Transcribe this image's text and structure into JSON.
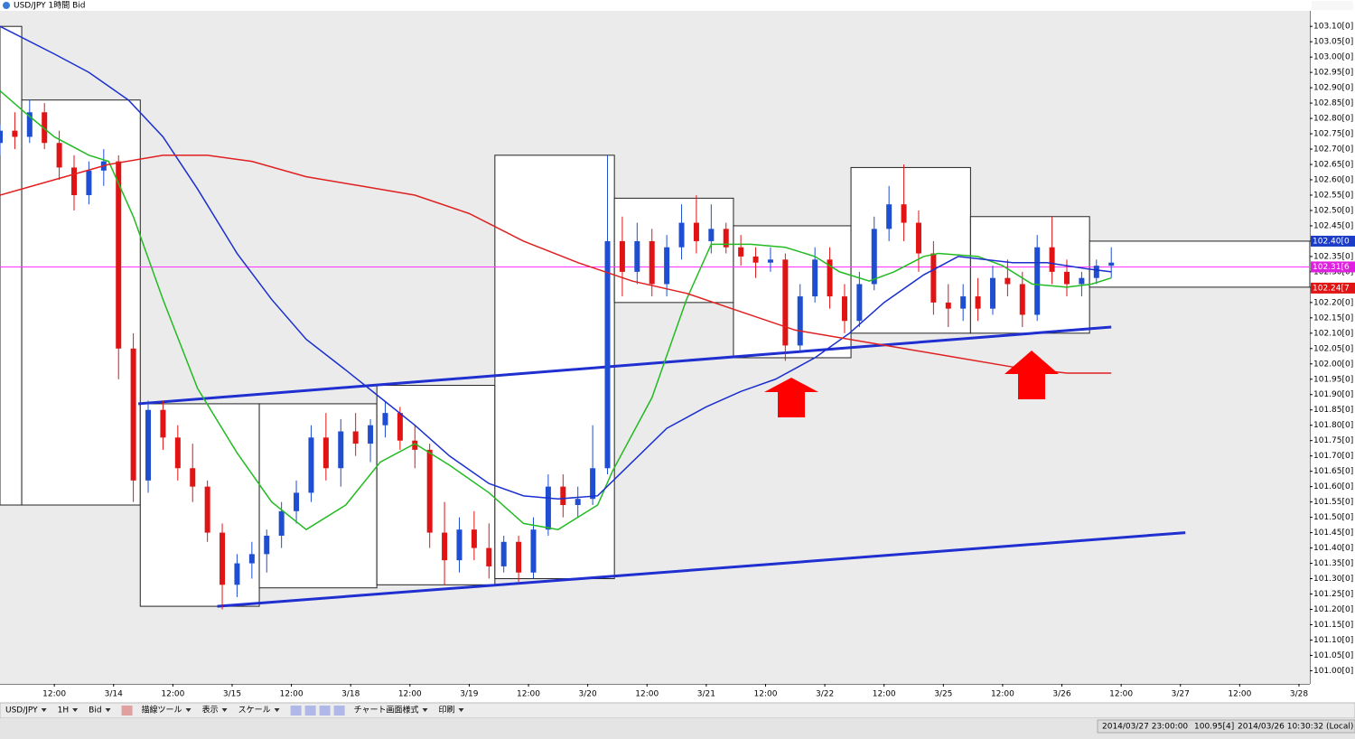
{
  "window_title": "USD/JPY 1時間 Bid",
  "toolbar": [
    "USD/JPY",
    "1H",
    "Bid",
    "描線ツール",
    "表示",
    "スケール",
    "チャート画面様式",
    "印刷"
  ],
  "status": [
    "2014/03/27 23:00:00",
    "100.95[4]",
    "2014/03/26 10:30:32 (Local)"
  ],
  "chart_data": {
    "type": "candlestick",
    "xlim": [
      0,
      265.2
    ],
    "ylim": [
      100.96,
      103.13
    ],
    "xticks": [
      {
        "value": 11,
        "label": "12:00"
      },
      {
        "value": 23,
        "label": "3/14"
      },
      {
        "value": 35,
        "label": "12:00"
      },
      {
        "value": 47,
        "label": "3/15"
      },
      {
        "value": 59,
        "label": "12:00"
      },
      {
        "value": 71,
        "label": "3/18"
      },
      {
        "value": 83,
        "label": "12:00"
      },
      {
        "value": 95,
        "label": "3/19"
      },
      {
        "value": 107,
        "label": "12:00"
      },
      {
        "value": 119,
        "label": "3/20"
      },
      {
        "value": 131,
        "label": "12:00"
      },
      {
        "value": 143,
        "label": "3/21"
      },
      {
        "value": 155,
        "label": "12:00"
      },
      {
        "value": 167,
        "label": "3/22"
      },
      {
        "value": 179,
        "label": "12:00"
      },
      {
        "value": 191,
        "label": "3/25"
      },
      {
        "value": 203,
        "label": "12:00"
      },
      {
        "value": 215,
        "label": "3/26"
      },
      {
        "value": 227,
        "label": "12:00"
      },
      {
        "value": 239,
        "label": "3/27"
      },
      {
        "value": 251,
        "label": "12:00"
      },
      {
        "value": 263,
        "label": "3/28"
      }
    ],
    "yticks": [
      {
        "value": 101.0,
        "label": "101.00[0]"
      },
      {
        "value": 101.05,
        "label": "101.05[0]"
      },
      {
        "value": 101.1,
        "label": "101.10[0]"
      },
      {
        "value": 101.15,
        "label": "101.15[0]"
      },
      {
        "value": 101.2,
        "label": "101.20[0]"
      },
      {
        "value": 101.25,
        "label": "101.25[0]"
      },
      {
        "value": 101.3,
        "label": "101.30[0]"
      },
      {
        "value": 101.35,
        "label": "101.35[0]"
      },
      {
        "value": 101.4,
        "label": "101.40[0]"
      },
      {
        "value": 101.45,
        "label": "101.45[0]"
      },
      {
        "value": 101.5,
        "label": "101.50[0]"
      },
      {
        "value": 101.55,
        "label": "101.55[0]"
      },
      {
        "value": 101.6,
        "label": "101.60[0]"
      },
      {
        "value": 101.65,
        "label": "101.65[0]"
      },
      {
        "value": 101.7,
        "label": "101.70[0]"
      },
      {
        "value": 101.75,
        "label": "101.75[0]"
      },
      {
        "value": 101.8,
        "label": "101.80[0]"
      },
      {
        "value": 101.85,
        "label": "101.85[0]"
      },
      {
        "value": 101.9,
        "label": "101.90[0]"
      },
      {
        "value": 101.95,
        "label": "101.95[0]"
      },
      {
        "value": 102.0,
        "label": "102.00[0]"
      },
      {
        "value": 102.05,
        "label": "102.05[0]"
      },
      {
        "value": 102.1,
        "label": "102.10[0]"
      },
      {
        "value": 102.15,
        "label": "102.15[0]"
      },
      {
        "value": 102.2,
        "label": "102.20[0]"
      },
      {
        "value": 102.25,
        "label": "102.25[0]"
      },
      {
        "value": 102.3,
        "label": "102.30[0]"
      },
      {
        "value": 102.35,
        "label": "102.35[0]"
      },
      {
        "value": 102.4,
        "label": "102.40[0]"
      },
      {
        "value": 102.45,
        "label": "102.45[0]"
      },
      {
        "value": 102.5,
        "label": "102.50[0]"
      },
      {
        "value": 102.55,
        "label": "102.55[0]"
      },
      {
        "value": 102.6,
        "label": "102.60[0]"
      },
      {
        "value": 102.65,
        "label": "102.65[0]"
      },
      {
        "value": 102.7,
        "label": "102.70[0]"
      },
      {
        "value": 102.75,
        "label": "102.75[0]"
      },
      {
        "value": 102.8,
        "label": "102.80[0]"
      },
      {
        "value": 102.85,
        "label": "102.85[0]"
      },
      {
        "value": 102.9,
        "label": "102.90[0]"
      },
      {
        "value": 102.95,
        "label": "102.95[0]"
      },
      {
        "value": 103.0,
        "label": "103.00[0]"
      },
      {
        "value": 103.05,
        "label": "103.05[0]"
      },
      {
        "value": 103.1,
        "label": "103.10[0]"
      }
    ],
    "up_color": "#1f4fd0",
    "down_color": "#e01414",
    "candles": {
      "x": [
        0,
        3,
        6,
        9,
        12,
        15,
        18,
        21,
        24,
        27,
        30,
        33,
        36,
        39,
        42,
        45,
        48,
        51,
        54,
        57,
        60,
        63,
        66,
        69,
        72,
        75,
        78,
        81,
        84,
        87,
        90,
        93,
        96,
        99,
        102,
        105,
        108,
        111,
        114,
        117,
        120,
        123,
        126,
        129,
        132,
        135,
        138,
        141,
        144,
        147,
        150,
        153,
        156,
        159,
        162,
        165,
        168,
        171,
        174,
        177,
        180,
        183,
        186,
        189,
        192,
        195,
        198,
        201,
        204,
        207,
        210,
        213,
        216,
        219,
        222,
        225
      ],
      "open": [
        102.72,
        102.76,
        102.74,
        102.82,
        102.72,
        102.64,
        102.55,
        102.63,
        102.66,
        102.05,
        101.62,
        101.85,
        101.76,
        101.66,
        101.6,
        101.45,
        101.28,
        101.35,
        101.38,
        101.44,
        101.52,
        101.58,
        101.76,
        101.66,
        101.78,
        101.74,
        101.8,
        101.84,
        101.75,
        101.72,
        101.45,
        101.36,
        101.46,
        101.4,
        101.34,
        101.42,
        101.32,
        101.46,
        101.6,
        101.54,
        101.56,
        101.66,
        102.4,
        102.3,
        102.4,
        102.26,
        102.38,
        102.46,
        102.4,
        102.44,
        102.38,
        102.35,
        102.33,
        102.34,
        102.06,
        102.22,
        102.34,
        102.22,
        102.14,
        102.26,
        102.44,
        102.52,
        102.46,
        102.36,
        102.2,
        102.18,
        102.22,
        102.18,
        102.28,
        102.26,
        102.16,
        102.38,
        102.3,
        102.26,
        102.28,
        102.32
      ],
      "high": [
        102.78,
        102.82,
        102.86,
        102.85,
        102.76,
        102.68,
        102.66,
        102.7,
        102.68,
        102.1,
        101.88,
        101.88,
        101.8,
        101.74,
        101.62,
        101.48,
        101.38,
        101.42,
        101.46,
        101.55,
        101.62,
        101.8,
        101.84,
        101.82,
        101.84,
        101.82,
        101.88,
        101.86,
        101.8,
        101.74,
        101.55,
        101.5,
        101.52,
        101.48,
        101.44,
        101.44,
        101.5,
        101.64,
        101.64,
        101.6,
        101.8,
        102.68,
        102.48,
        102.46,
        102.44,
        102.42,
        102.52,
        102.55,
        102.52,
        102.46,
        102.42,
        102.38,
        102.38,
        102.36,
        102.26,
        102.38,
        102.38,
        102.26,
        102.3,
        102.48,
        102.58,
        102.65,
        102.5,
        102.4,
        102.26,
        102.26,
        102.28,
        102.32,
        102.34,
        102.3,
        102.42,
        102.48,
        102.34,
        102.3,
        102.34,
        102.38
      ],
      "low": [
        102.68,
        102.7,
        102.72,
        102.7,
        102.6,
        102.5,
        102.52,
        102.58,
        101.95,
        101.55,
        101.58,
        101.72,
        101.62,
        101.55,
        101.42,
        101.2,
        101.24,
        101.3,
        101.32,
        101.4,
        101.48,
        101.55,
        101.62,
        101.6,
        101.7,
        101.68,
        101.76,
        101.72,
        101.66,
        101.4,
        101.28,
        101.32,
        101.36,
        101.3,
        101.32,
        101.29,
        101.3,
        101.44,
        101.5,
        101.5,
        101.54,
        101.64,
        102.22,
        102.26,
        102.22,
        102.22,
        102.34,
        102.36,
        102.36,
        102.36,
        102.32,
        102.28,
        102.3,
        102.01,
        102.04,
        102.2,
        102.18,
        102.1,
        102.12,
        102.24,
        102.4,
        102.4,
        102.3,
        102.16,
        102.12,
        102.14,
        102.14,
        102.16,
        102.22,
        102.12,
        102.14,
        102.26,
        102.22,
        102.22,
        102.26,
        102.28
      ],
      "close": [
        102.76,
        102.74,
        102.82,
        102.72,
        102.64,
        102.55,
        102.63,
        102.66,
        102.05,
        101.62,
        101.85,
        101.76,
        101.66,
        101.6,
        101.45,
        101.28,
        101.35,
        101.38,
        101.44,
        101.52,
        101.58,
        101.76,
        101.66,
        101.78,
        101.74,
        101.8,
        101.84,
        101.75,
        101.72,
        101.45,
        101.36,
        101.46,
        101.4,
        101.34,
        101.42,
        101.32,
        101.46,
        101.6,
        101.54,
        101.56,
        101.66,
        102.4,
        102.3,
        102.4,
        102.26,
        102.38,
        102.46,
        102.4,
        102.44,
        102.38,
        102.35,
        102.33,
        102.34,
        102.06,
        102.22,
        102.34,
        102.22,
        102.14,
        102.26,
        102.44,
        102.52,
        102.46,
        102.36,
        102.2,
        102.18,
        102.22,
        102.18,
        102.28,
        102.26,
        102.16,
        102.38,
        102.3,
        102.26,
        102.28,
        102.32,
        102.33
      ]
    },
    "boxes": {
      "x0": [
        0,
        4.4,
        28.4,
        52.5,
        76.3,
        100.2,
        124.4,
        148.5,
        172.3,
        196.5,
        220.6
      ],
      "x1": [
        4.4,
        28.4,
        52.5,
        76.3,
        100.2,
        124.4,
        148.5,
        172.3,
        196.5,
        220.6,
        265.2
      ],
      "high": [
        103.1,
        102.86,
        101.87,
        101.87,
        101.93,
        102.68,
        102.54,
        102.45,
        102.64,
        102.48,
        102.4
      ],
      "low": [
        101.54,
        101.54,
        101.21,
        101.27,
        101.28,
        101.3,
        102.2,
        102.02,
        102.1,
        102.1,
        102.25
      ]
    },
    "lines": [
      {
        "color": "#22bb22",
        "x": [
          0,
          5,
          11,
          18,
          22,
          27,
          33,
          40,
          48,
          55,
          62,
          70,
          77,
          84,
          91,
          99,
          106,
          113,
          121,
          124,
          132,
          139,
          144,
          152,
          159,
          165,
          170,
          176,
          181,
          187,
          190,
          198,
          203,
          209,
          216,
          221,
          225
        ],
        "values": [
          102.89,
          102.82,
          102.74,
          102.68,
          102.66,
          102.48,
          102.21,
          101.92,
          101.71,
          101.55,
          101.46,
          101.54,
          101.68,
          101.74,
          101.67,
          101.58,
          101.48,
          101.46,
          101.54,
          101.65,
          101.89,
          102.21,
          102.39,
          102.39,
          102.38,
          102.35,
          102.3,
          102.27,
          102.3,
          102.35,
          102.36,
          102.35,
          102.32,
          102.26,
          102.25,
          102.26,
          102.28
        ]
      },
      {
        "color": "#1a2fcf",
        "x": [
          0,
          11,
          18,
          26,
          33,
          40,
          48,
          55,
          62,
          70,
          77,
          84,
          91,
          99,
          106,
          113,
          121,
          128,
          135,
          143,
          150,
          157,
          165,
          172,
          179,
          187,
          194,
          205,
          212,
          220,
          225
        ],
        "values": [
          103.1,
          103.01,
          102.95,
          102.86,
          102.74,
          102.57,
          102.36,
          102.21,
          102.08,
          101.98,
          101.89,
          101.8,
          101.7,
          101.61,
          101.57,
          101.56,
          101.57,
          101.68,
          101.79,
          101.86,
          101.91,
          101.95,
          102.02,
          102.1,
          102.2,
          102.29,
          102.35,
          102.33,
          102.33,
          102.31,
          102.3
        ]
      },
      {
        "color": "#e02020",
        "x": [
          0,
          11,
          22,
          33,
          42,
          51,
          62,
          73,
          84,
          95,
          106,
          117,
          128,
          139,
          150,
          161,
          172,
          183,
          194,
          205,
          216,
          225
        ],
        "values": [
          102.55,
          102.6,
          102.65,
          102.68,
          102.68,
          102.66,
          102.61,
          102.58,
          102.55,
          102.49,
          102.4,
          102.33,
          102.27,
          102.23,
          102.17,
          102.11,
          102.08,
          102.05,
          102.02,
          101.99,
          101.97,
          101.97
        ]
      }
    ],
    "trendlines": {
      "color": "#1f2fd0",
      "items": [
        {
          "x": [
            28,
            225
          ],
          "values": [
            101.87,
            102.12
          ]
        },
        {
          "x": [
            44,
            240
          ],
          "values": [
            101.21,
            101.45
          ]
        }
      ]
    },
    "hline": {
      "value": 102.316,
      "color": "#ff33ff"
    },
    "price_labels": [
      {
        "value": 102.4,
        "label": "102.40[0",
        "color": "#1a3cc8"
      },
      {
        "value": 102.316,
        "label": "102.31[6",
        "color": "#e020e0"
      },
      {
        "value": 102.247,
        "label": "102.24[7",
        "color": "#e01414"
      }
    ]
  }
}
